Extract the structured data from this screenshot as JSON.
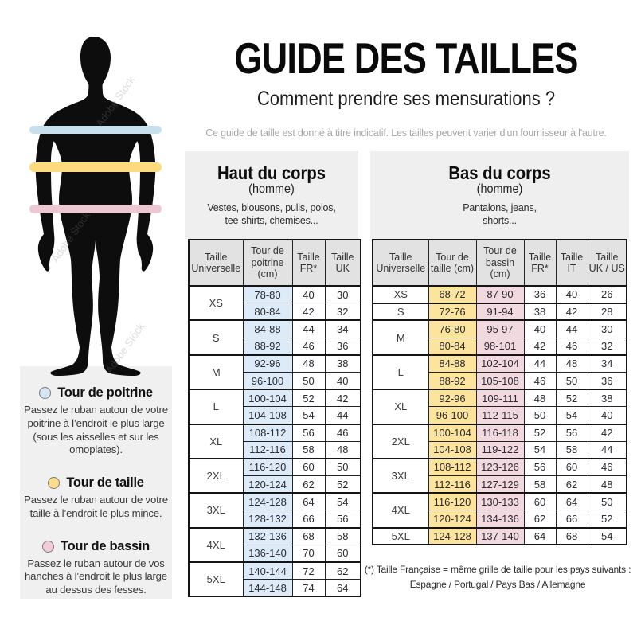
{
  "title": "GUIDE DES TAILLES",
  "subtitle": "Comment prendre ses mensurations ?",
  "disclaimer": "Ce guide de taille est donné à titre indicatif. Les tailles peuvent varier d'un fournisseur à l'autre.",
  "watermark": "Adobe Stock",
  "figure": {
    "silhouette_color": "#0d0d0d",
    "bands": [
      {
        "name": "chest",
        "color": "#c7e0ee"
      },
      {
        "name": "waist",
        "color": "#fbdb7e"
      },
      {
        "name": "hips",
        "color": "#ecc8d3"
      }
    ]
  },
  "legend": {
    "items": [
      {
        "color": "#d4e7f3",
        "title": "Tour de poitrine",
        "text": "Passez le ruban autour de votre poitrine à l’endroit le plus large (sous les aisselles et sur les omoplates)."
      },
      {
        "color": "#f9dd8a",
        "title": "Tour de taille",
        "text": "Passez le ruban autour de votre taille à l’endroit le plus mince."
      },
      {
        "color": "#f3ccd9",
        "title": "Tour de bassin",
        "text": "Passez le ruban autour de vos hanches à l’endroit le plus large au dessus des fesses."
      }
    ]
  },
  "upper_table": {
    "title": "Haut du corps",
    "homme": "(homme)",
    "description": "Vestes, blousons, pulls, polos,\ntee-shirts, chemises...",
    "headers": [
      "Taille Universelle",
      "Tour de poitrine (cm)",
      "Taille FR*",
      "Taille UK"
    ],
    "col_colors": [
      "#dcebf7",
      null,
      null
    ],
    "groups": [
      {
        "size": "XS",
        "rows": [
          [
            "78-80",
            "40",
            "30"
          ],
          [
            "80-84",
            "42",
            "32"
          ]
        ]
      },
      {
        "size": "S",
        "rows": [
          [
            "84-88",
            "44",
            "34"
          ],
          [
            "88-92",
            "46",
            "36"
          ]
        ]
      },
      {
        "size": "M",
        "rows": [
          [
            "92-96",
            "48",
            "38"
          ],
          [
            "96-100",
            "50",
            "40"
          ]
        ]
      },
      {
        "size": "L",
        "rows": [
          [
            "100-104",
            "52",
            "42"
          ],
          [
            "104-108",
            "54",
            "44"
          ]
        ]
      },
      {
        "size": "XL",
        "rows": [
          [
            "108-112",
            "56",
            "46"
          ],
          [
            "112-116",
            "58",
            "48"
          ]
        ]
      },
      {
        "size": "2XL",
        "rows": [
          [
            "116-120",
            "60",
            "50"
          ],
          [
            "120-124",
            "62",
            "52"
          ]
        ]
      },
      {
        "size": "3XL",
        "rows": [
          [
            "124-128",
            "64",
            "54"
          ],
          [
            "128-132",
            "66",
            "56"
          ]
        ]
      },
      {
        "size": "4XL",
        "rows": [
          [
            "132-136",
            "68",
            "58"
          ],
          [
            "136-140",
            "70",
            "60"
          ]
        ]
      },
      {
        "size": "5XL",
        "rows": [
          [
            "140-144",
            "72",
            "62"
          ],
          [
            "144-148",
            "74",
            "64"
          ]
        ]
      }
    ]
  },
  "lower_table": {
    "title": "Bas du corps",
    "homme": "(homme)",
    "description": "Pantalons, jeans,\nshorts...",
    "headers": [
      "Taille Universelle",
      "Tour de taille (cm)",
      "Tour de bassin (cm)",
      "Taille FR*",
      "Taille IT",
      "Taille UK / US"
    ],
    "col_colors": [
      "#fce49c",
      "#f2d9e0",
      null,
      null,
      null
    ],
    "groups": [
      {
        "size": "XS",
        "rows": [
          [
            "68-72",
            "87-90",
            "36",
            "40",
            "26"
          ]
        ]
      },
      {
        "size": "S",
        "rows": [
          [
            "72-76",
            "91-94",
            "38",
            "42",
            "28"
          ]
        ]
      },
      {
        "size": "M",
        "rows": [
          [
            "76-80",
            "95-97",
            "40",
            "44",
            "30"
          ],
          [
            "80-84",
            "98-101",
            "42",
            "46",
            "32"
          ]
        ]
      },
      {
        "size": "L",
        "rows": [
          [
            "84-88",
            "102-104",
            "44",
            "48",
            "34"
          ],
          [
            "88-92",
            "105-108",
            "46",
            "50",
            "36"
          ]
        ]
      },
      {
        "size": "XL",
        "rows": [
          [
            "92-96",
            "109-111",
            "48",
            "52",
            "38"
          ],
          [
            "96-100",
            "112-115",
            "50",
            "54",
            "40"
          ]
        ]
      },
      {
        "size": "2XL",
        "rows": [
          [
            "100-104",
            "116-118",
            "52",
            "56",
            "42"
          ],
          [
            "104-108",
            "119-122",
            "54",
            "58",
            "44"
          ]
        ]
      },
      {
        "size": "3XL",
        "rows": [
          [
            "108-112",
            "123-126",
            "56",
            "60",
            "46"
          ],
          [
            "112-116",
            "127-129",
            "58",
            "62",
            "48"
          ]
        ]
      },
      {
        "size": "4XL",
        "rows": [
          [
            "116-120",
            "130-133",
            "60",
            "64",
            "50"
          ],
          [
            "120-124",
            "134-136",
            "62",
            "66",
            "52"
          ]
        ]
      },
      {
        "size": "5XL",
        "rows": [
          [
            "124-128",
            "137-140",
            "64",
            "68",
            "54"
          ]
        ]
      }
    ]
  },
  "footnote_line1": "(*) Taille Française = même grille de taille pour les pays suivants :",
  "footnote_line2": "Espagne / Portugal / Pays Bas / Allemagne"
}
